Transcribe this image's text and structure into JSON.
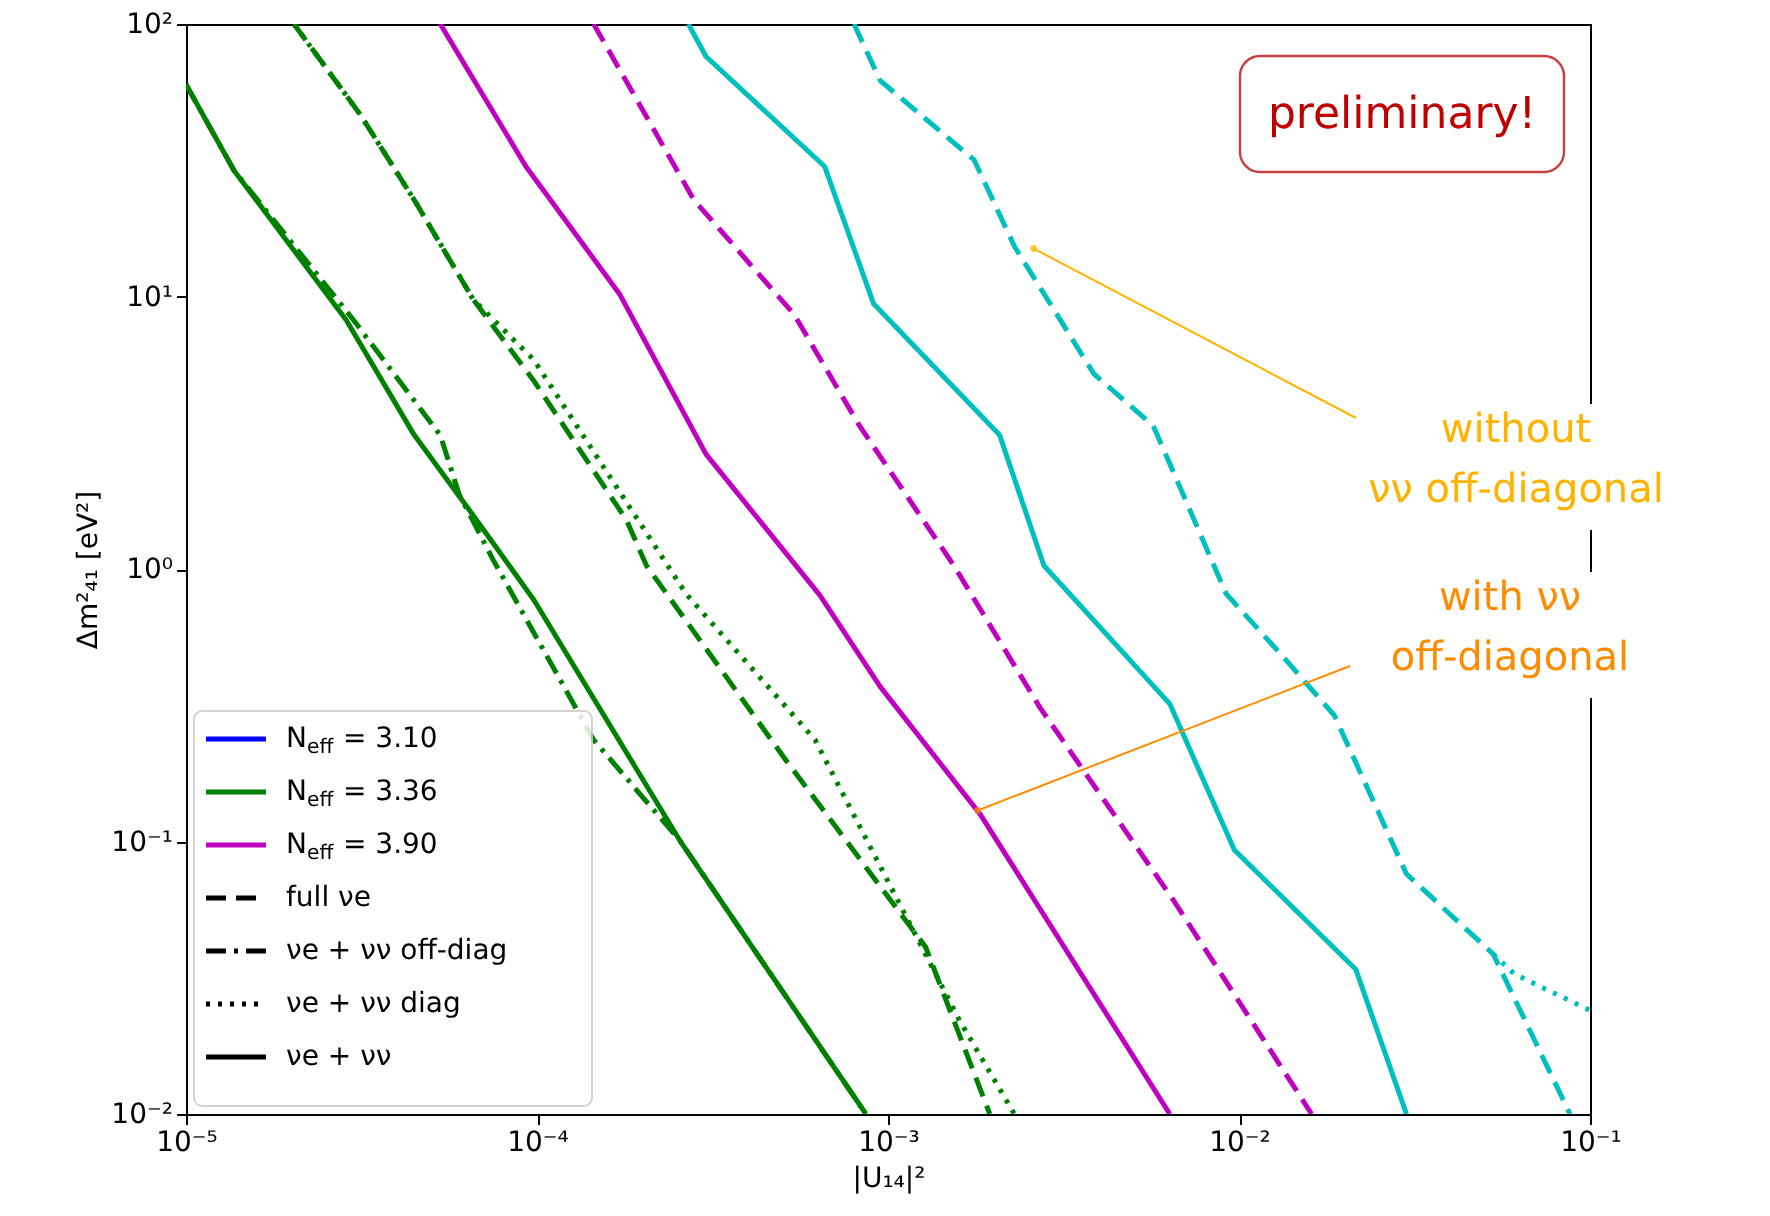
{
  "chart_data": {
    "type": "line",
    "xlabel": "|U₁₄|²",
    "ylabel": "Δm²₄₁ [eV²]",
    "log": "xy",
    "grid": false,
    "legend": "bottom left",
    "marker": "none",
    "xlim": [
      1e-05,
      0.1
    ],
    "ylim": [
      0.01,
      100
    ],
    "xticks": [
      {
        "value": 1e-05,
        "label": "10⁻⁵"
      },
      {
        "value": 0.0001,
        "label": "10⁻⁴"
      },
      {
        "value": 0.001,
        "label": "10⁻³"
      },
      {
        "value": 0.01,
        "label": "10⁻²"
      },
      {
        "value": 0.1,
        "label": "10⁻¹"
      }
    ],
    "yticks": [
      {
        "value": 0.01,
        "label": "10⁻²"
      },
      {
        "value": 0.1,
        "label": "10⁻¹"
      },
      {
        "value": 1,
        "label": "10⁰"
      },
      {
        "value": 10,
        "label": "10¹"
      },
      {
        "value": 100,
        "label": "10²"
      }
    ],
    "series": [
      {
        "name": "N$_{eff}$ = 3.10",
        "color": "#0000ff",
        "line_style": "solid"
      },
      {
        "name": "N$_{eff}$ = 3.36",
        "color": "#008000",
        "line_style": "solid",
        "x": [
          1e-05,
          1.37e-05,
          2.86e-05,
          4.47e-05,
          6.3e-05,
          9.8e-05,
          0.000255,
          0.000865
        ],
        "values": [
          60,
          29,
          8.2,
          3.1,
          1.7,
          0.77,
          0.101,
          0.01
        ]
      },
      {
        "color": "#008000",
        "line_style": "dashdot",
        "x": [
          1e-05,
          1.37e-05,
          3e-05,
          5.3e-05,
          6e-05,
          7.5e-05,
          0.000145,
          0.000255,
          0.000865
        ],
        "values": [
          60,
          29,
          8.2,
          3.1,
          1.88,
          1.08,
          0.236,
          0.101,
          0.01
        ]
      },
      {
        "color": "#008000",
        "line_style": "dashed",
        "x": [
          2.03e-05,
          3.13e-05,
          4.47e-05,
          6.6e-05,
          9.8e-05,
          0.00018,
          0.000205,
          0.00051,
          0.00128,
          0.00195
        ],
        "values": [
          100,
          46.7,
          22.6,
          9.7,
          4.9,
          1.51,
          1.03,
          0.2,
          0.041,
          0.01
        ]
      },
      {
        "color": "#008000",
        "line_style": "dotted",
        "x": [
          2.03e-05,
          3.13e-05,
          4.47e-05,
          6.6e-05,
          9.8e-05,
          0.000138,
          0.000266,
          0.00062,
          0.0016,
          0.00229
        ],
        "values": [
          100,
          46.7,
          22.6,
          9.7,
          5.85,
          2.97,
          0.81,
          0.236,
          0.022,
          0.01
        ]
      },
      {
        "name": "N$_{eff}$ = 3.90",
        "color": "#bf00bf",
        "line_style": "solid",
        "x": [
          5.3e-05,
          9.3e-05,
          0.000172,
          0.000303,
          0.00064,
          0.00095,
          0.00183,
          0.00635
        ],
        "values": [
          100,
          30,
          10.2,
          2.64,
          0.8,
          0.37,
          0.126,
          0.01
        ]
      },
      {
        "color": "#bf00bf",
        "line_style": "dashed",
        "x": [
          0.000145,
          0.00028,
          0.00054,
          0.00083,
          0.00154,
          0.00271,
          0.0065,
          0.0161
        ],
        "values": [
          100,
          22.6,
          8.6,
          3.35,
          1.03,
          0.31,
          0.061,
          0.01
        ]
      },
      {
        "color": "#00bfbf",
        "line_style": "solid",
        "x": [
          0.00027,
          0.000303,
          0.00066,
          0.00091,
          0.00208,
          0.00278,
          0.00635,
          0.0097,
          0.0215,
          0.03
        ],
        "values": [
          100,
          76,
          30,
          9.4,
          3.1,
          1.03,
          0.32,
          0.093,
          0.034,
          0.01
        ]
      },
      {
        "color": "#00bfbf",
        "line_style": "dashed",
        "x": [
          0.0008,
          0.00095,
          0.00176,
          0.00229,
          0.00386,
          0.0057,
          0.0092,
          0.0131,
          0.0187,
          0.03,
          0.053,
          0.0877
        ],
        "values": [
          100,
          62,
          31.7,
          15.3,
          5.2,
          3.35,
          0.81,
          0.49,
          0.29,
          0.076,
          0.0386,
          0.01
        ]
      },
      {
        "color": "#00bfbf",
        "line_style": "dotted",
        "x": [
          0.053,
          0.0607,
          0.1
        ],
        "values": [
          0.0386,
          0.0327,
          0.024
        ]
      }
    ],
    "annotations": [
      "preliminary!",
      {
        "text": "without\nνν off-diagonal",
        "x": 0.0026,
        "y": 15
      },
      {
        "text": "with νν\noff-diagonal",
        "x": 0.0018,
        "y": 0.13
      },
      "full νe",
      "νe + νν off-diag",
      "νe + νν diag",
      "νe + νν"
    ]
  }
}
